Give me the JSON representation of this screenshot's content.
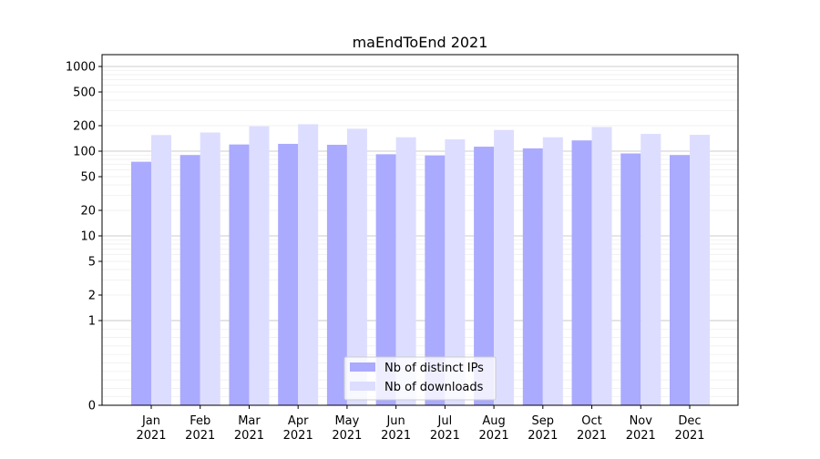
{
  "chart_data": {
    "type": "bar",
    "title": "maEndToEnd 2021",
    "xlabel": "",
    "ylabel": "",
    "yscale": "symlog",
    "ylim": [
      0,
      1300
    ],
    "yticks": [
      0,
      1,
      2,
      5,
      10,
      20,
      50,
      100,
      200,
      500,
      1000
    ],
    "categories": [
      [
        "Jan",
        "2021"
      ],
      [
        "Feb",
        "2021"
      ],
      [
        "Mar",
        "2021"
      ],
      [
        "Apr",
        "2021"
      ],
      [
        "May",
        "2021"
      ],
      [
        "Jun",
        "2021"
      ],
      [
        "Jul",
        "2021"
      ],
      [
        "Aug",
        "2021"
      ],
      [
        "Sep",
        "2021"
      ],
      [
        "Oct",
        "2021"
      ],
      [
        "Nov",
        "2021"
      ],
      [
        "Dec",
        "2021"
      ]
    ],
    "series": [
      {
        "name": "Nb of distinct IPs",
        "color": "#aaaaff",
        "values": [
          75,
          90,
          120,
          122,
          119,
          92,
          89,
          113,
          108,
          134,
          94,
          90
        ]
      },
      {
        "name": "Nb of downloads",
        "color": "#ddddff",
        "values": [
          155,
          166,
          197,
          208,
          184,
          146,
          138,
          178,
          146,
          193,
          160,
          156
        ]
      }
    ],
    "grid": true,
    "legend_position": "bottom-center"
  }
}
